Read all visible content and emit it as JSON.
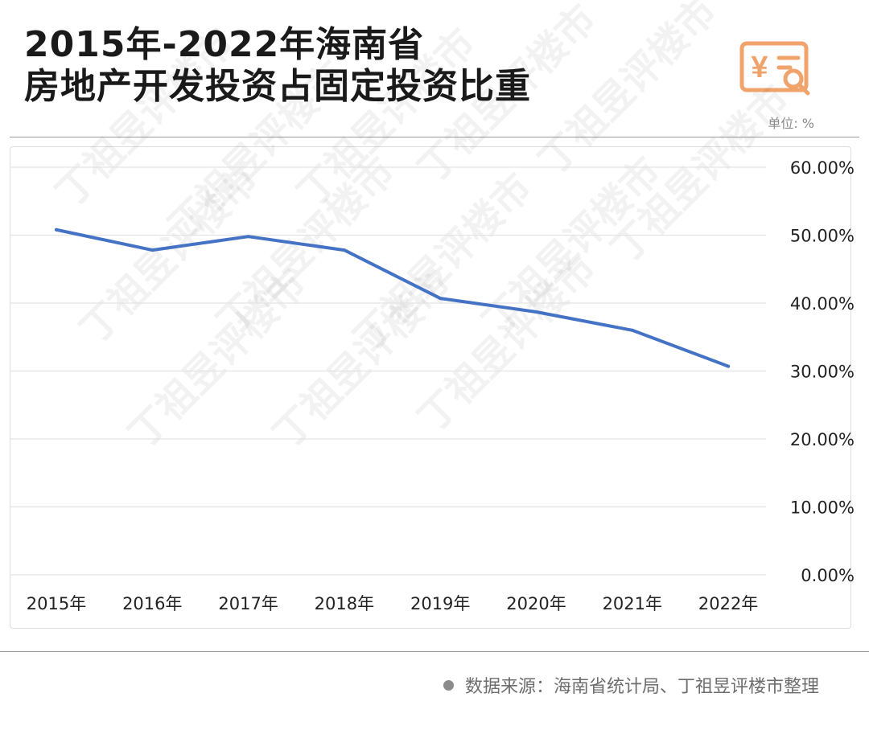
{
  "title": {
    "line1": "2015年-2022年海南省",
    "line2": "房地产开发投资占固定投资比重"
  },
  "unit_label": "单位: %",
  "logo": {
    "icon": "yen-document-magnifier-icon",
    "color": "#F0A36A"
  },
  "source": "数据来源：海南省统计局、丁祖昱评楼市整理",
  "watermark": "丁祖昱评楼市",
  "chart_data": {
    "type": "line",
    "categories": [
      "2015年",
      "2016年",
      "2017年",
      "2018年",
      "2019年",
      "2020年",
      "2021年",
      "2022年"
    ],
    "series": [
      {
        "values": [
          50.8,
          47.8,
          49.8,
          47.8,
          40.7,
          38.7,
          36.0,
          30.7
        ],
        "color": "#4472C4"
      }
    ],
    "ylim": [
      0,
      60
    ],
    "yticks": [
      "0.00%",
      "10.00%",
      "20.00%",
      "30.00%",
      "40.00%",
      "50.00%",
      "60.00%"
    ],
    "y_axis_side": "right",
    "grid": true,
    "legend": "none"
  }
}
